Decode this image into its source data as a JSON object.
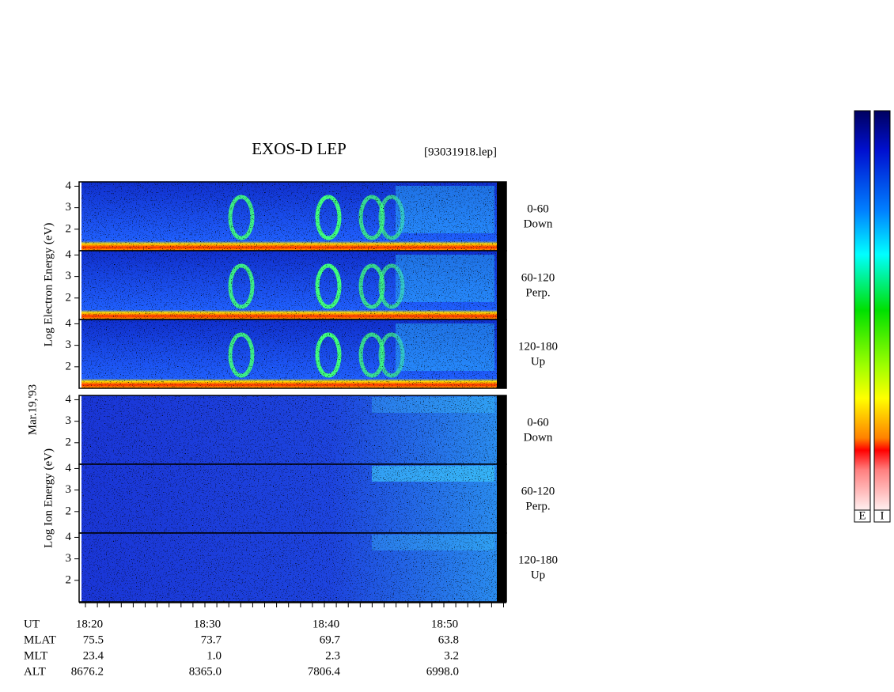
{
  "header": {
    "title": "EXOS-D LEP",
    "file": "[93031918.lep]",
    "date": "Mar.19,'93"
  },
  "electron": {
    "axis_label": "Log Electron Energy (eV)",
    "panels": [
      {
        "angle": "0-60",
        "direction": "Down",
        "yticks": [
          2,
          3,
          4
        ]
      },
      {
        "angle": "60-120",
        "direction": "Perp.",
        "yticks": [
          2,
          3,
          4
        ]
      },
      {
        "angle": "120-180",
        "direction": "Up",
        "yticks": [
          2,
          3,
          4
        ]
      }
    ]
  },
  "ion": {
    "axis_label": "Log Ion Energy (eV)",
    "panels": [
      {
        "angle": "0-60",
        "direction": "Down",
        "yticks": [
          2,
          3,
          4
        ]
      },
      {
        "angle": "60-120",
        "direction": "Perp.",
        "yticks": [
          2,
          3,
          4
        ]
      },
      {
        "angle": "120-180",
        "direction": "Up",
        "yticks": [
          2,
          3,
          4
        ]
      }
    ]
  },
  "time_axis": {
    "name": "UT",
    "labels": [
      "18:20",
      "18:30",
      "18:40",
      "18:50"
    ]
  },
  "ephemeris": {
    "rows": [
      {
        "name": "MLAT",
        "values": [
          "75.5",
          "73.7",
          "69.7",
          "63.8"
        ]
      },
      {
        "name": "MLT",
        "values": [
          "23.4",
          "1.0",
          "2.3",
          "3.2"
        ]
      },
      {
        "name": "ALT",
        "values": [
          "8676.2",
          "8365.0",
          "7806.4",
          "6998.0"
        ]
      }
    ]
  },
  "colorbars": {
    "labels": [
      "E",
      "I"
    ]
  }
}
